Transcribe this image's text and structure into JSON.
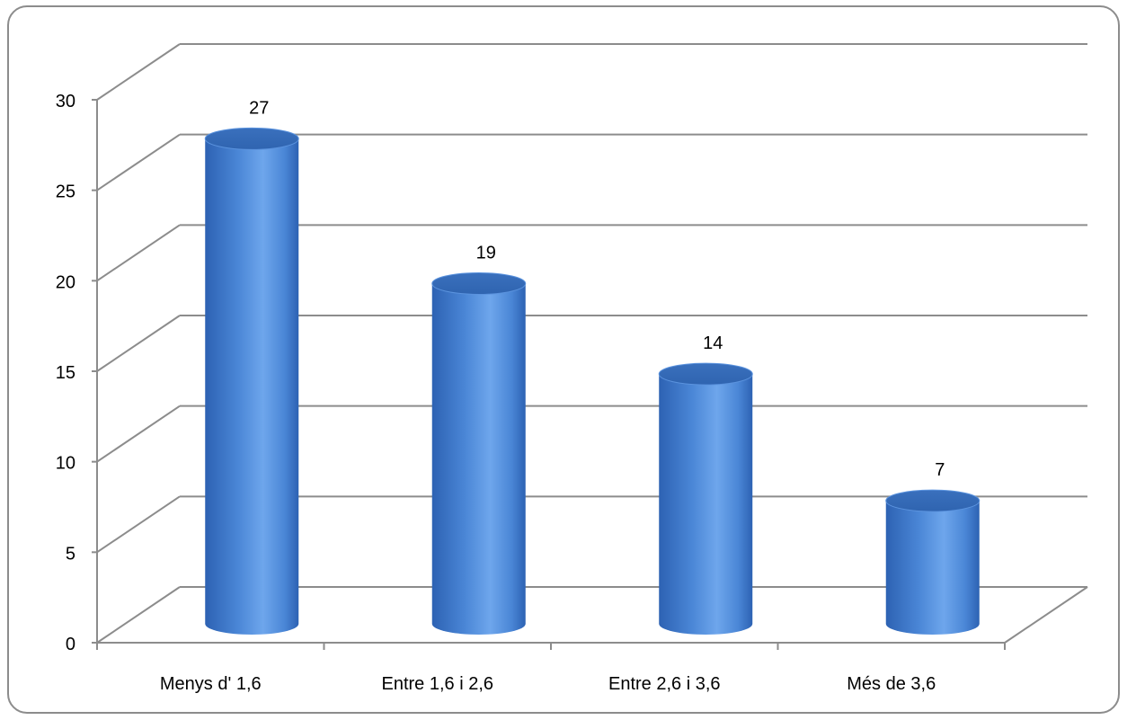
{
  "chart_data": {
    "type": "bar",
    "style": "3d-cylinder",
    "categories": [
      "Menys d' 1,6",
      "Entre 1,6 i 2,6",
      "Entre 2,6 i 3,6",
      "Més de 3,6"
    ],
    "values": [
      27,
      19,
      14,
      7
    ],
    "data_labels": [
      "27",
      "19",
      "14",
      "7"
    ],
    "title": "",
    "xlabel": "",
    "ylabel": "",
    "ylim": [
      0,
      30
    ],
    "yticks": [
      0,
      5,
      10,
      15,
      20,
      25,
      30
    ],
    "ytick_labels": [
      "0",
      "5",
      "10",
      "15",
      "20",
      "25",
      "30"
    ],
    "grid": true,
    "legend": "none",
    "colors": {
      "bar_body": "#4a86d6",
      "bar_highlight": "#6ea6ec",
      "bar_shadow": "#2d62b3",
      "bar_top": "#3f78c6",
      "gridline": "#8c8c8c",
      "axis": "#8c8c8c"
    }
  }
}
